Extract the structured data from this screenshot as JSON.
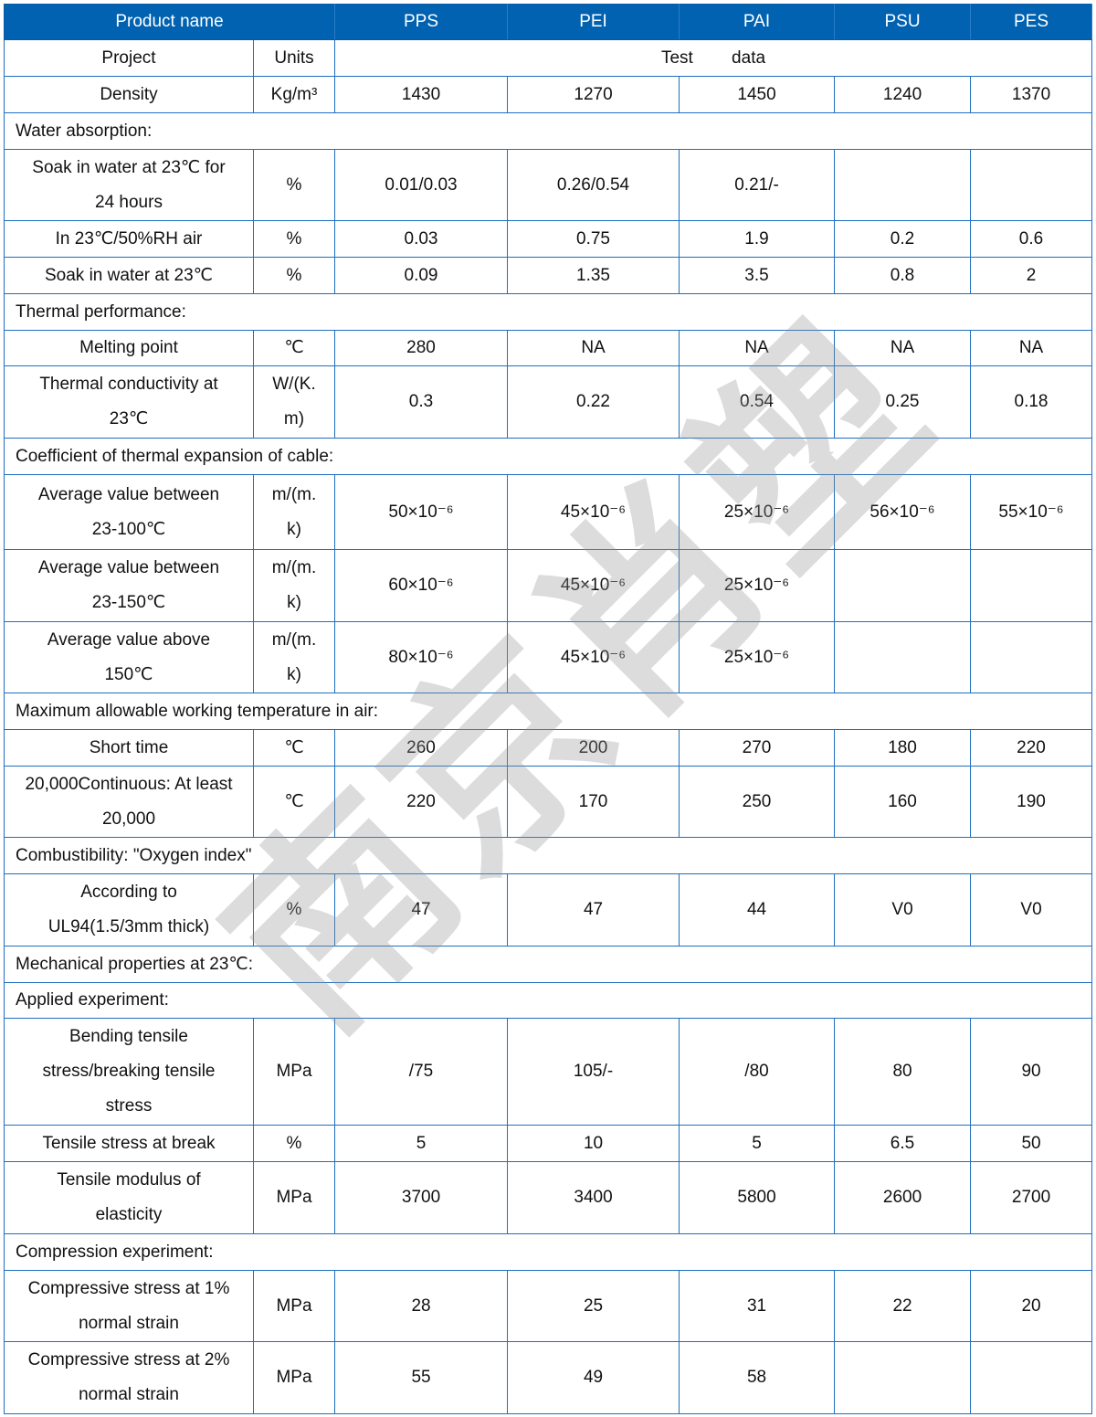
{
  "header": [
    "Product name",
    "PPS",
    "PEI",
    "PAI",
    "PSU",
    "PES"
  ],
  "project_row": {
    "label": "Project",
    "units": "Units",
    "data": "Test        data"
  },
  "colors": {
    "header_bg": "#0062b1",
    "border": "#1f6fbf"
  },
  "watermark": "南京肖塑",
  "rows": [
    {
      "type": "data",
      "name": "Density",
      "unit": "Kg/m³",
      "values": [
        "1430",
        "1270",
        "1450",
        "1240",
        "1370"
      ],
      "h": 40
    },
    {
      "type": "section",
      "name": "Water absorption:",
      "h": 40
    },
    {
      "type": "data",
      "name": "Soak in water at 23℃ for\n24 hours",
      "unit": "%",
      "values": [
        "0.01/0.03",
        "0.26/0.54",
        "0.21/-",
        "",
        ""
      ],
      "h": 78
    },
    {
      "type": "data",
      "name": "In 23℃/50%RH air",
      "unit": "%",
      "values": [
        "0.03",
        "0.75",
        "1.9",
        "0.2",
        "0.6"
      ],
      "h": 40
    },
    {
      "type": "data",
      "name": "Soak in water at 23℃",
      "unit": "%",
      "values": [
        "0.09",
        "1.35",
        "3.5",
        "0.8",
        "2"
      ],
      "h": 40
    },
    {
      "type": "section",
      "name": "Thermal performance:",
      "h": 40
    },
    {
      "type": "data",
      "name": "Melting point",
      "unit": "℃",
      "values": [
        "280",
        "NA",
        "NA",
        "NA",
        "NA"
      ],
      "h": 39
    },
    {
      "type": "data",
      "name": "Thermal conductivity at\n23℃",
      "unit": "W/(K.\nm)",
      "values": [
        "0.3",
        "0.22",
        "0.54",
        "0.25",
        "0.18"
      ],
      "h": 79
    },
    {
      "type": "section",
      "name": "Coefficient of thermal expansion of cable:",
      "h": 40
    },
    {
      "type": "data",
      "name": "Average value between\n23-100℃",
      "unit": "m/(m.\nk)",
      "values": [
        "50×10⁻⁶",
        "45×10⁻⁶",
        "25×10⁻⁶",
        "56×10⁻⁶",
        "55×10⁻⁶"
      ],
      "h": 82
    },
    {
      "type": "data",
      "name": "Average value between\n23-150℃",
      "unit": "m/(m.\nk)",
      "values": [
        "60×10⁻⁶",
        "45×10⁻⁶",
        "25×10⁻⁶",
        "",
        ""
      ],
      "h": 79
    },
    {
      "type": "data",
      "name": "Average value above\n150℃",
      "unit": "m/(m.\nk)",
      "values": [
        "80×10⁻⁶",
        "45×10⁻⁶",
        "25×10⁻⁶",
        "",
        ""
      ],
      "h": 78
    },
    {
      "type": "section",
      "name": "Maximum allowable working temperature in air:",
      "h": 40
    },
    {
      "type": "data",
      "name": "Short time",
      "unit": "℃",
      "values": [
        "260",
        "200",
        "270",
        "180",
        "220"
      ],
      "h": 40
    },
    {
      "type": "data",
      "name": "20,000Continuous: At least\n20,000",
      "unit": "℃",
      "values": [
        "220",
        "170",
        "250",
        "160",
        "190"
      ],
      "h": 78
    },
    {
      "type": "section",
      "name": "Combustibility: \"Oxygen index\"",
      "h": 40
    },
    {
      "type": "data",
      "name": "According to\nUL94(1.5/3mm thick)",
      "unit": "%",
      "values": [
        "47",
        "47",
        "44",
        "V0",
        "V0"
      ],
      "h": 79
    },
    {
      "type": "section",
      "name": "Mechanical properties at 23℃:",
      "h": 40
    },
    {
      "type": "section",
      "name": "Applied experiment:",
      "h": 39
    },
    {
      "type": "data",
      "name": "Bending tensile\nstress/breaking tensile\nstress",
      "unit": "MPa",
      "values": [
        "/75",
        "105/-",
        "/80",
        "80",
        "90"
      ],
      "h": 117
    },
    {
      "type": "data",
      "name": "Tensile stress at break",
      "unit": "%",
      "values": [
        "5",
        "10",
        "5",
        "6.5",
        "50"
      ],
      "h": 40
    },
    {
      "type": "data",
      "name": "Tensile modulus of\nelasticity",
      "unit": "MPa",
      "values": [
        "3700",
        "3400",
        "5800",
        "2600",
        "2700"
      ],
      "h": 79
    },
    {
      "type": "section",
      "name": "Compression experiment:",
      "h": 40
    },
    {
      "type": "data",
      "name": "Compressive stress at 1%\nnormal strain",
      "unit": "MPa",
      "values": [
        "28",
        "25",
        "31",
        "22",
        "20"
      ],
      "h": 78
    },
    {
      "type": "data",
      "name": "Compressive stress at 2%\nnormal strain",
      "unit": "MPa",
      "values": [
        "55",
        "49",
        "58",
        "",
        ""
      ],
      "h": 79
    }
  ]
}
